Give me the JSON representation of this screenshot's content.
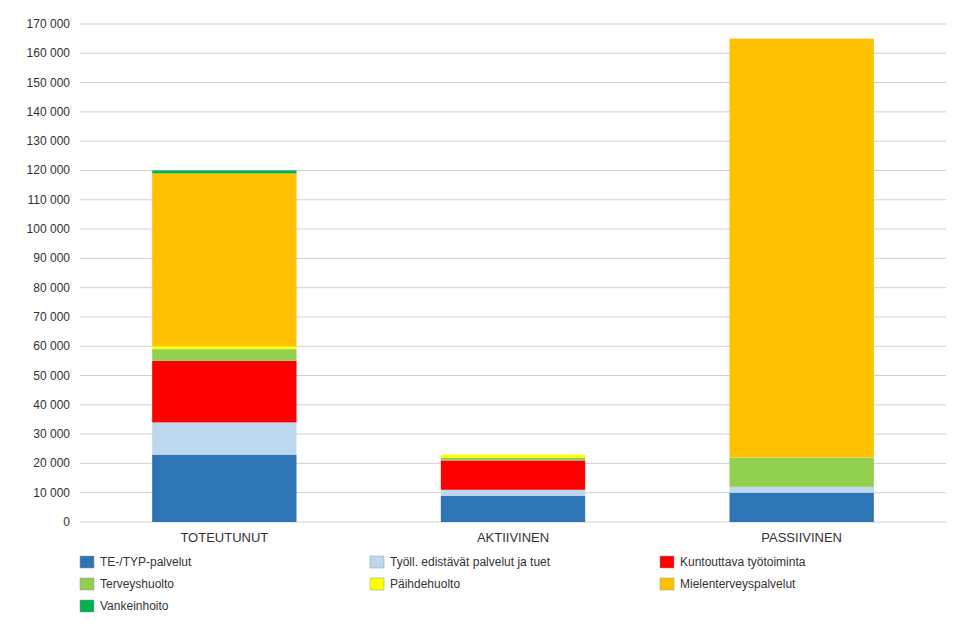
{
  "chart_data": {
    "type": "bar",
    "stacked": true,
    "categories": [
      "TOTEUTUNUT",
      "AKTIIVINEN",
      "PASSIIVINEN"
    ],
    "series": [
      {
        "name": "TE-/TYP-palvelut",
        "color": "#2E75B6",
        "values": [
          23000,
          9000,
          10000
        ]
      },
      {
        "name": "Työll. edistävät palvelut ja tuet",
        "color": "#BDD7EE",
        "values": [
          11000,
          2000,
          2000
        ]
      },
      {
        "name": "Kuntouttava työtoiminta",
        "color": "#FF0000",
        "values": [
          21000,
          10000,
          0
        ]
      },
      {
        "name": "Terveyshuolto",
        "color": "#92D050",
        "values": [
          4000,
          1000,
          10000
        ]
      },
      {
        "name": "Päihdehuolto",
        "color": "#FFFF00",
        "values": [
          1000,
          1000,
          0
        ]
      },
      {
        "name": "Mielenterveyspalvelut",
        "color": "#FFC000",
        "values": [
          59000,
          0,
          143000
        ]
      },
      {
        "name": "Vankeinhoito",
        "color": "#00B050",
        "values": [
          1000,
          0,
          0
        ]
      }
    ],
    "ylim": [
      0,
      170000
    ],
    "yticks": [
      0,
      {
        "value": 10000,
        "label": "10 000"
      },
      {
        "value": 20000,
        "label": "20 000"
      },
      {
        "value": 30000,
        "label": "30 000"
      },
      {
        "value": 40000,
        "label": "40 000"
      },
      {
        "value": 50000,
        "label": "50 000"
      },
      {
        "value": 60000,
        "label": "60 000"
      },
      {
        "value": 70000,
        "label": "70 000"
      },
      {
        "value": 80000,
        "label": "80 000"
      },
      {
        "value": 90000,
        "label": "90 000"
      },
      {
        "value": 100000,
        "label": "100 000"
      },
      {
        "value": 110000,
        "label": "110 000"
      },
      {
        "value": 120000,
        "label": "120 000"
      },
      {
        "value": 130000,
        "label": "130 000"
      },
      {
        "value": 140000,
        "label": "140 000"
      },
      {
        "value": 150000,
        "label": "150 000"
      },
      {
        "value": 160000,
        "label": "160 000"
      },
      {
        "value": 170000,
        "label": "170 000"
      }
    ],
    "grid": true,
    "legend": "bottom"
  }
}
